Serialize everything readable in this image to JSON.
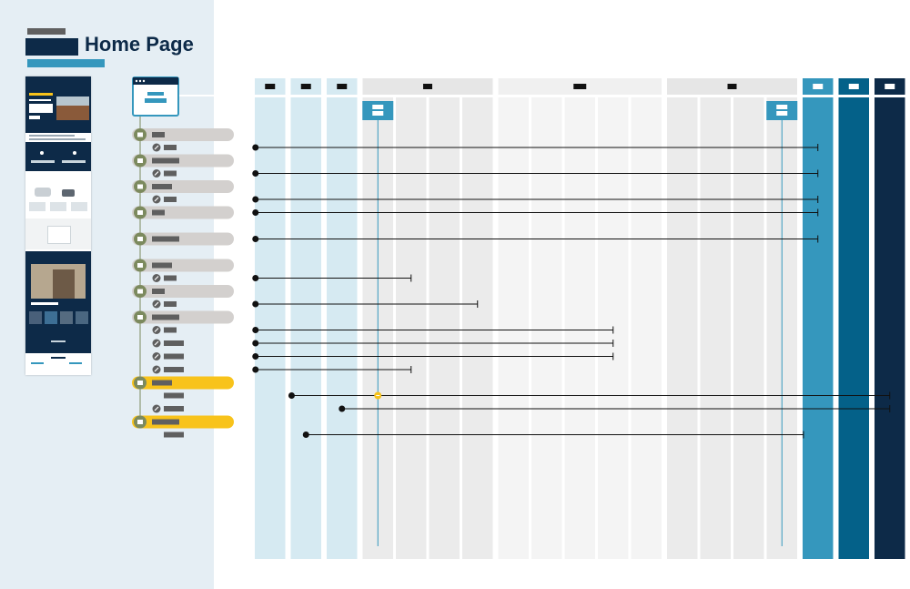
{
  "page": {
    "title": "Home Page"
  },
  "colors": {
    "sidebar_bg": "#e5eef4",
    "navy": "#0d2a48",
    "teal": "#3597bd",
    "deep_teal": "#046189",
    "light_blue_lane": "#d6eaf2",
    "gray_lane": "#ebebeb",
    "light_gray_lane": "#f4f4f4",
    "pill_gray": "#d3d0ce",
    "pill_yellow": "#f8c31b",
    "node_green": "#7c8a5e",
    "redaction": "#5f5f5f"
  },
  "diagram": {
    "lane_groups": [
      {
        "id": "g1",
        "lanes": 1,
        "header_style": "light-blue",
        "body_style": "light-blue"
      },
      {
        "id": "g2",
        "lanes": 1,
        "header_style": "light-blue",
        "body_style": "light-blue"
      },
      {
        "id": "g3",
        "lanes": 1,
        "header_style": "light-blue",
        "body_style": "light-blue"
      },
      {
        "id": "g4",
        "lanes": 4,
        "header_style": "gray",
        "body_style": "gray"
      },
      {
        "id": "g5",
        "lanes": 5,
        "header_style": "light-gray",
        "body_style": "light-gray"
      },
      {
        "id": "g6",
        "lanes": 4,
        "header_style": "gray",
        "body_style": "gray"
      },
      {
        "id": "g7",
        "lanes": 1,
        "header_style": "teal",
        "body_style": "teal"
      },
      {
        "id": "g8",
        "lanes": 1,
        "header_style": "deep-teal",
        "body_style": "deep-teal"
      },
      {
        "id": "g9",
        "lanes": 1,
        "header_style": "navy",
        "body_style": "navy"
      }
    ],
    "items": [
      {
        "kind": "section",
        "style": "gray",
        "has_sub": true,
        "sub_icon": "list-icon",
        "line": {
          "from_lane": 0,
          "to_lane": 16,
          "arrow": "end"
        }
      },
      {
        "kind": "section",
        "style": "gray",
        "has_sub": true,
        "sub_icon": "search-icon",
        "line": {
          "from_lane": 0,
          "to_lane": 16,
          "arrow": "end"
        }
      },
      {
        "kind": "section",
        "style": "gray",
        "has_sub": true,
        "sub_icon": "link-icon",
        "line": {
          "from_lane": 0,
          "to_lane": 16,
          "arrow": "end"
        }
      },
      {
        "kind": "section",
        "style": "gray",
        "has_sub": false,
        "line": {
          "from_lane": 0,
          "to_lane": 16,
          "arrow": "end"
        }
      },
      {
        "kind": "section",
        "style": "gray",
        "has_sub": false,
        "line": {
          "from_lane": 0,
          "to_lane": 16,
          "arrow": "end"
        }
      },
      {
        "kind": "section",
        "style": "gray",
        "has_sub": true,
        "sub_icon": "link-icon",
        "line": {
          "from_lane": 0,
          "to_lane": 4,
          "arrow": "end"
        }
      },
      {
        "kind": "section",
        "style": "gray",
        "has_sub": true,
        "sub_icon": "link-icon",
        "line": {
          "from_lane": 0,
          "to_lane": 6,
          "arrow": "end"
        }
      },
      {
        "kind": "section",
        "style": "gray",
        "has_sub": true,
        "sub_icon": "link-icon",
        "line": {
          "from_lane": 0,
          "to_lane": 10,
          "arrow": "end"
        }
      },
      {
        "kind": "sub",
        "sub_icon": "link-icon",
        "line": {
          "from_lane": 0,
          "to_lane": 10,
          "arrow": "end"
        }
      },
      {
        "kind": "sub",
        "sub_icon": "link-icon",
        "line": {
          "from_lane": 0,
          "to_lane": 10,
          "arrow": "end"
        }
      },
      {
        "kind": "sub",
        "sub_icon": "link-icon",
        "line": {
          "from_lane": 0,
          "to_lane": 4,
          "arrow": "end"
        }
      },
      {
        "kind": "section",
        "style": "yellow",
        "has_sub": true,
        "sub_icon": "none",
        "line": {
          "from_lane": 0.6,
          "to_lane": 18,
          "arrow": "end",
          "marker_lane": 3
        }
      },
      {
        "kind": "sub",
        "sub_icon": "link-icon",
        "line": {
          "from_lane": 2,
          "to_lane": 18,
          "arrow": "end"
        }
      },
      {
        "kind": "section",
        "style": "yellow",
        "has_sub": true,
        "sub_icon": "none",
        "line": {
          "from_lane": 1,
          "to_lane": 15.6,
          "arrow": "end"
        }
      }
    ],
    "vertical_markers": [
      {
        "lane": 3
      },
      {
        "lane": 15
      }
    ],
    "thumbnail": {
      "sections": [
        {
          "name": "hero",
          "style": "navy"
        },
        {
          "name": "feature-strip",
          "style": "navy"
        },
        {
          "name": "vehicle-cards",
          "style": "white"
        },
        {
          "name": "promo-box",
          "style": "light"
        },
        {
          "name": "story-block",
          "style": "navy"
        },
        {
          "name": "footer",
          "style": "white"
        }
      ]
    }
  }
}
